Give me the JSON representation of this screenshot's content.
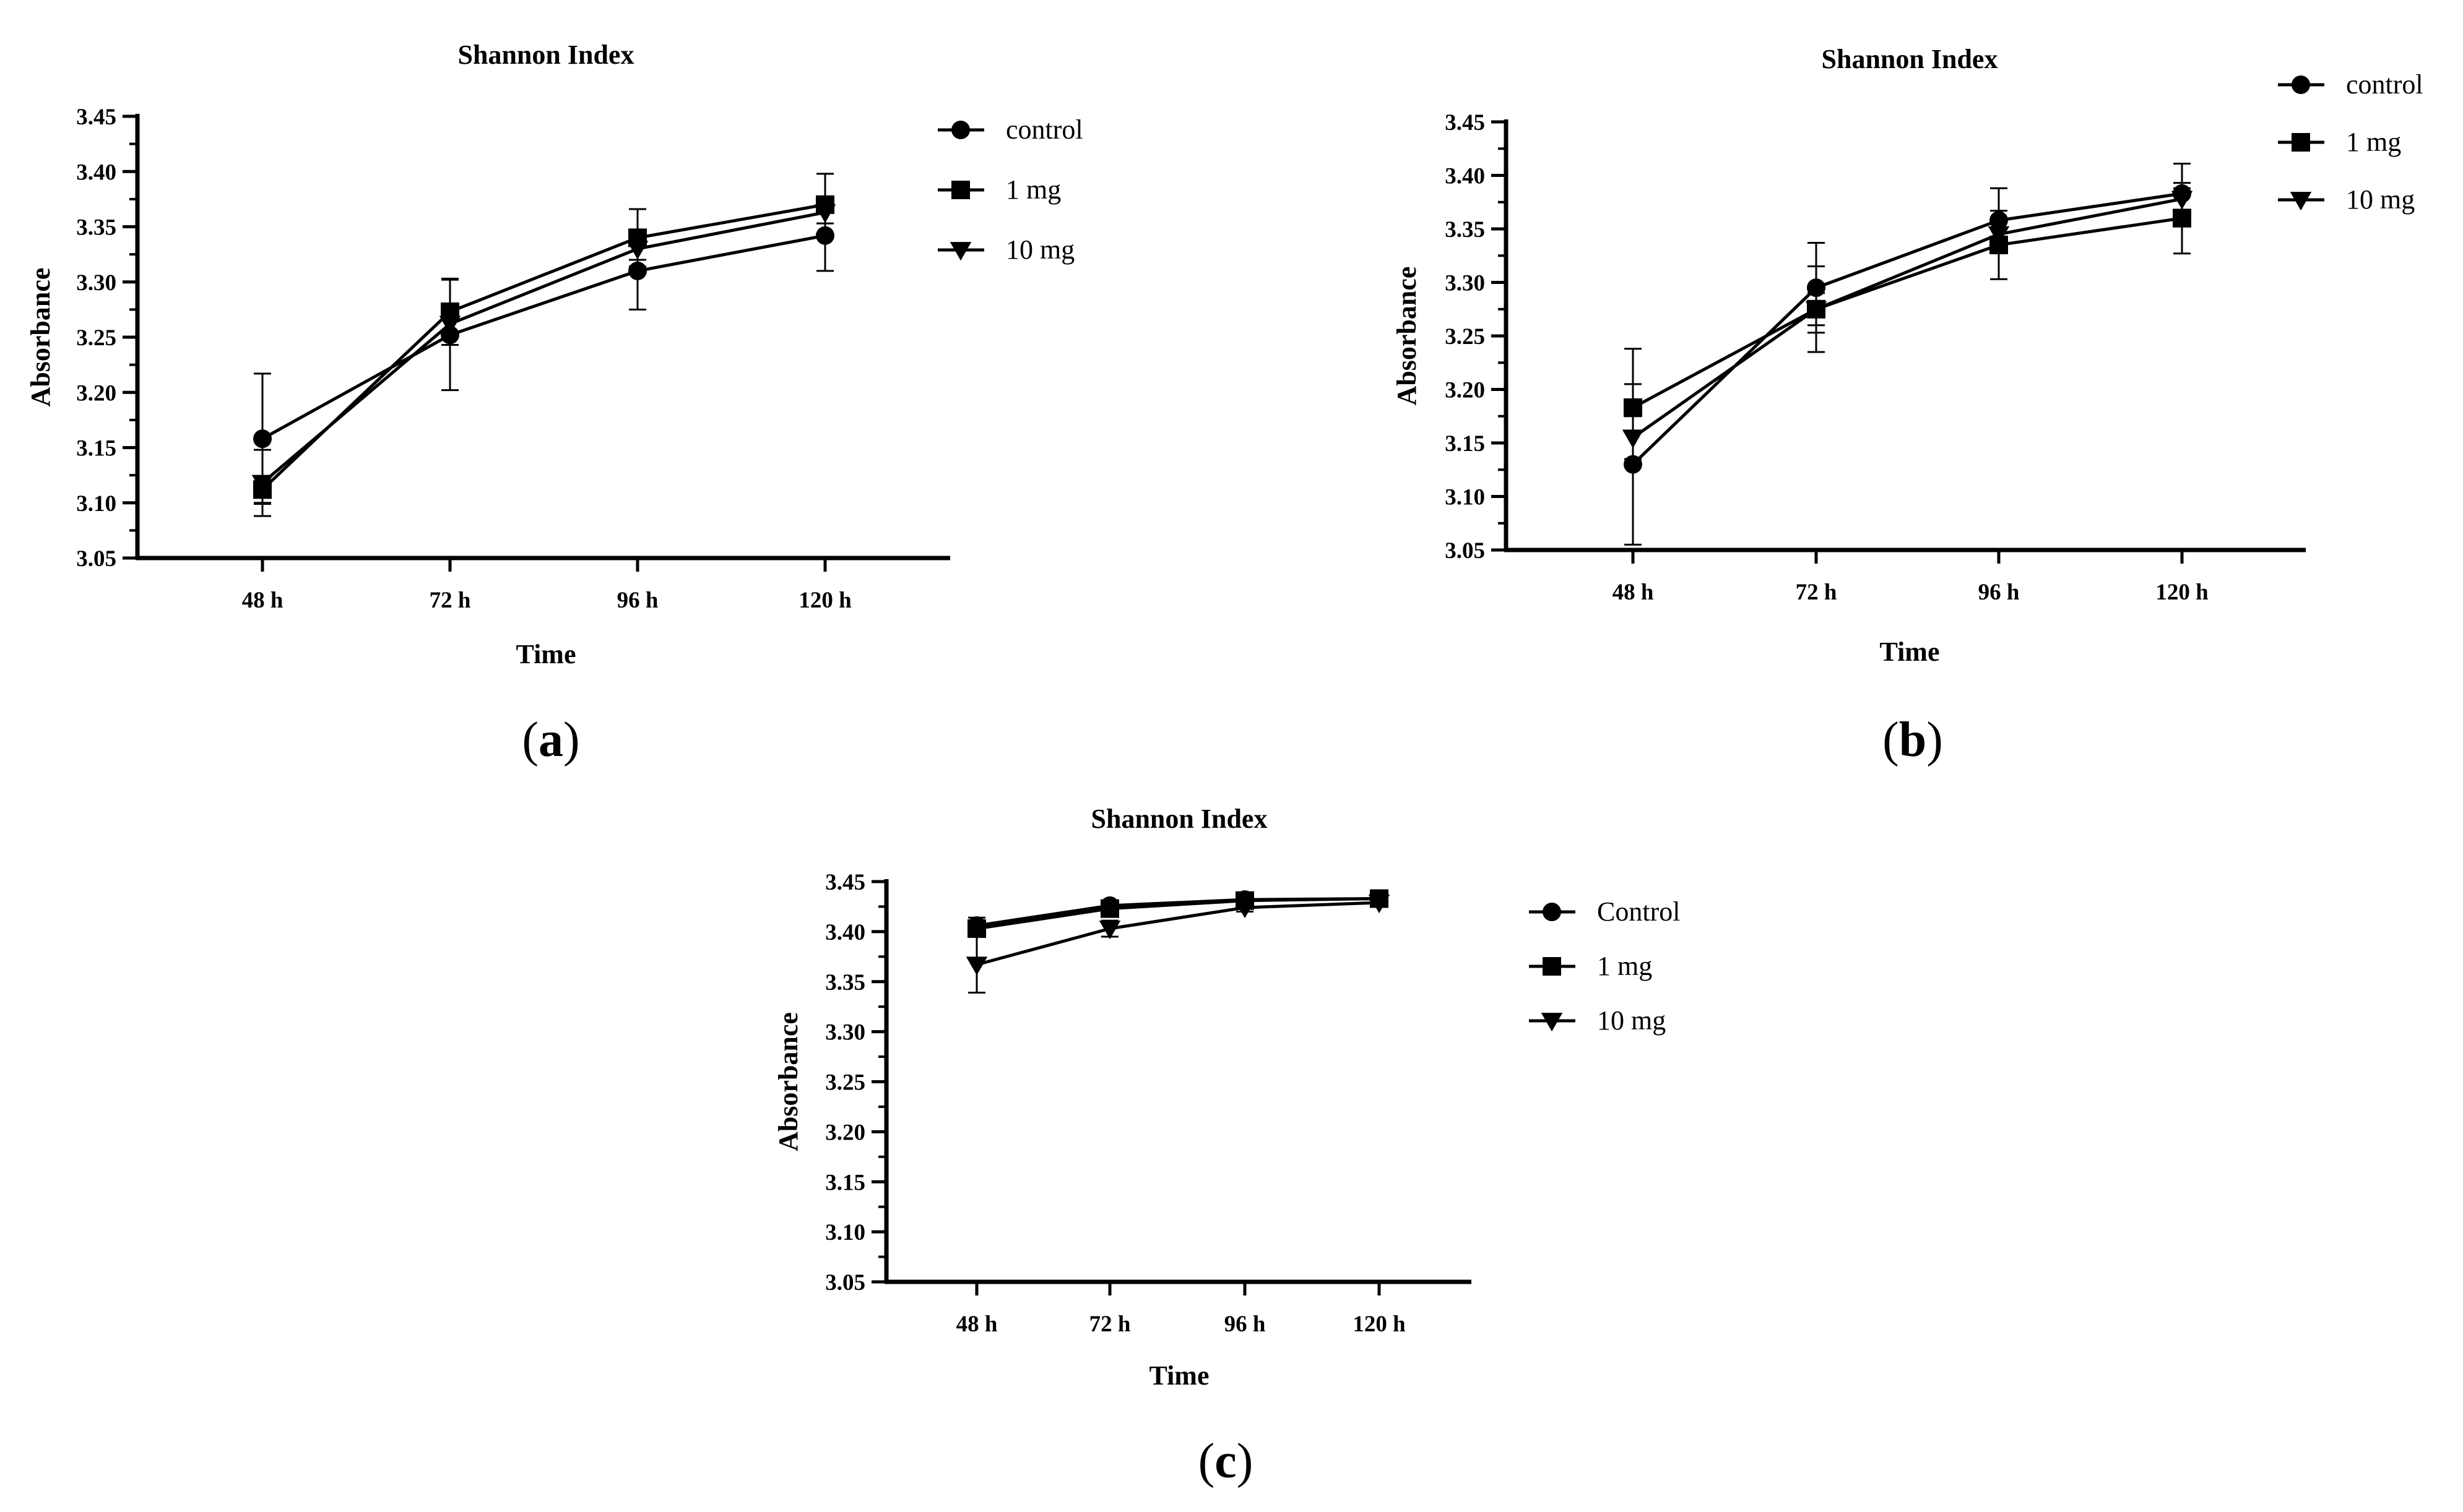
{
  "chart_data": [
    {
      "type": "line",
      "panel": "a",
      "title": "Shannon Index",
      "xlabel": "Time",
      "ylabel": "Absorbance",
      "categories": [
        "48 h",
        "72 h",
        "96 h",
        "120 h"
      ],
      "ylim": [
        3.05,
        3.45
      ],
      "yticks": [
        "3.05",
        "3.10",
        "3.15",
        "3.20",
        "3.25",
        "3.30",
        "3.35",
        "3.40",
        "3.45"
      ],
      "legend": "top-right",
      "series": [
        {
          "name": "control",
          "marker": "circle",
          "values": [
            3.158,
            3.252,
            3.31,
            3.342
          ],
          "errors": [
            0.059,
            0.05,
            0.035,
            0.032
          ]
        },
        {
          "name": "1 mg",
          "marker": "square",
          "values": [
            3.112,
            3.273,
            3.34,
            3.37
          ],
          "errors": [
            0.012,
            0.03,
            0.026,
            0.028
          ]
        },
        {
          "name": "10 mg",
          "marker": "triangle",
          "values": [
            3.118,
            3.262,
            3.33,
            3.363
          ],
          "errors": [
            0.03,
            0.012,
            0.01,
            0.01
          ]
        }
      ]
    },
    {
      "type": "line",
      "panel": "b",
      "title": "Shannon Index",
      "xlabel": "Time",
      "ylabel": "Absorbance",
      "categories": [
        "48 h",
        "72 h",
        "96 h",
        "120 h"
      ],
      "ylim": [
        3.05,
        3.45
      ],
      "yticks": [
        "3.05",
        "3.10",
        "3.15",
        "3.20",
        "3.25",
        "3.30",
        "3.35",
        "3.40",
        "3.45"
      ],
      "legend": "top-right",
      "series": [
        {
          "name": "control",
          "marker": "circle",
          "values": [
            3.13,
            3.295,
            3.358,
            3.383
          ],
          "errors": [
            0.075,
            0.042,
            0.03,
            0.028
          ]
        },
        {
          "name": "1 mg",
          "marker": "square",
          "values": [
            3.183,
            3.275,
            3.335,
            3.36
          ],
          "errors": [
            0.055,
            0.04,
            0.032,
            0.033
          ]
        },
        {
          "name": "10 mg",
          "marker": "triangle",
          "values": [
            3.155,
            3.275,
            3.345,
            3.378
          ],
          "errors": [
            0.02,
            0.015,
            0.015,
            0.01
          ]
        }
      ]
    },
    {
      "type": "line",
      "panel": "c",
      "title": "Shannon Index",
      "xlabel": "Time",
      "ylabel": "Absorbance",
      "categories": [
        "48 h",
        "72 h",
        "96 h",
        "120 h"
      ],
      "ylim": [
        3.05,
        3.45
      ],
      "yticks": [
        "3.05",
        "3.10",
        "3.15",
        "3.20",
        "3.25",
        "3.30",
        "3.35",
        "3.40",
        "3.45"
      ],
      "legend": "top-right",
      "series": [
        {
          "name": "Control",
          "marker": "circle",
          "values": [
            3.406,
            3.426,
            3.432,
            3.433
          ],
          "errors": [
            0.008,
            0.004,
            0.004,
            0.003
          ]
        },
        {
          "name": "1 mg",
          "marker": "square",
          "values": [
            3.403,
            3.423,
            3.431,
            3.433
          ],
          "errors": [
            0.008,
            0.004,
            0.004,
            0.003
          ]
        },
        {
          "name": "10 mg",
          "marker": "triangle",
          "values": [
            3.367,
            3.403,
            3.424,
            3.429
          ],
          "errors": [
            0.028,
            0.008,
            0.004,
            0.003
          ]
        }
      ]
    }
  ],
  "panel_labels": [
    {
      "open": "(",
      "letter": "a",
      "close": ")"
    },
    {
      "open": "(",
      "letter": "b",
      "close": ")"
    },
    {
      "open": "(",
      "letter": "c",
      "close": ")"
    }
  ]
}
